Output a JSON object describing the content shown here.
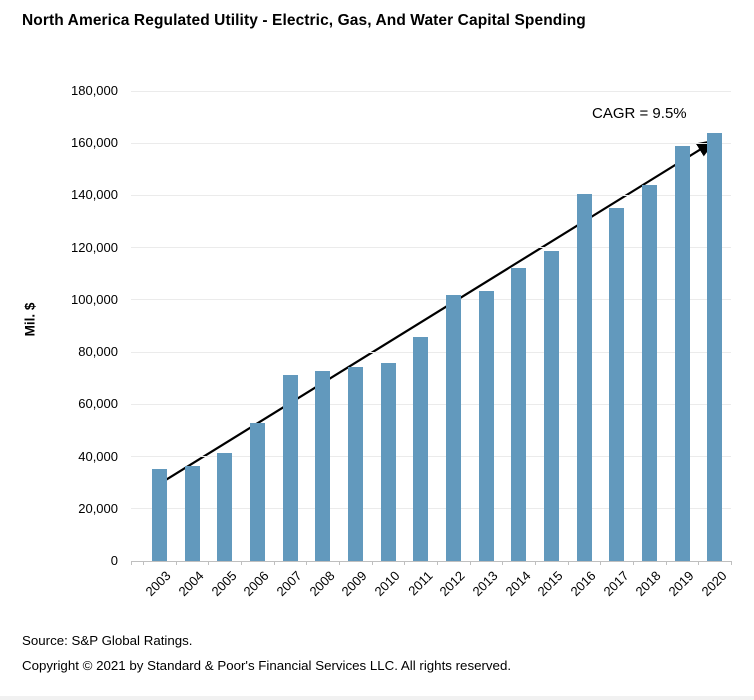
{
  "chart_data": {
    "type": "bar",
    "title": "North America Regulated Utility - Electric, Gas, And Water Capital Spending",
    "ylabel": "Mil. $",
    "xlabel": "",
    "categories": [
      "2003",
      "2004",
      "2005",
      "2006",
      "2007",
      "2008",
      "2009",
      "2010",
      "2011",
      "2012",
      "2013",
      "2014",
      "2015",
      "2016",
      "2017",
      "2018",
      "2019",
      "2020"
    ],
    "values": [
      35400,
      36200,
      41400,
      52900,
      71100,
      72800,
      74400,
      75800,
      85700,
      101900,
      103500,
      112100,
      118800,
      140600,
      135200,
      143900,
      158900,
      164000
    ],
    "ylim": [
      0,
      180000
    ],
    "ytick_step": 20000,
    "grid": true,
    "legend": "none",
    "bar_color": "#6299BD",
    "gridline_color": "#ebebeb",
    "axis_color": "#bfbfbf",
    "annotation": {
      "text": "CAGR = 9.5%"
    },
    "trendline": {
      "color": "#000000",
      "start": {
        "index": 0,
        "value": 29500
      },
      "end": {
        "index": 17,
        "value": 161000
      }
    }
  },
  "footer": {
    "source": "Source: S&P Global Ratings.",
    "copyright": "Copyright © 2021 by Standard & Poor's Financial Services LLC. All rights reserved."
  }
}
